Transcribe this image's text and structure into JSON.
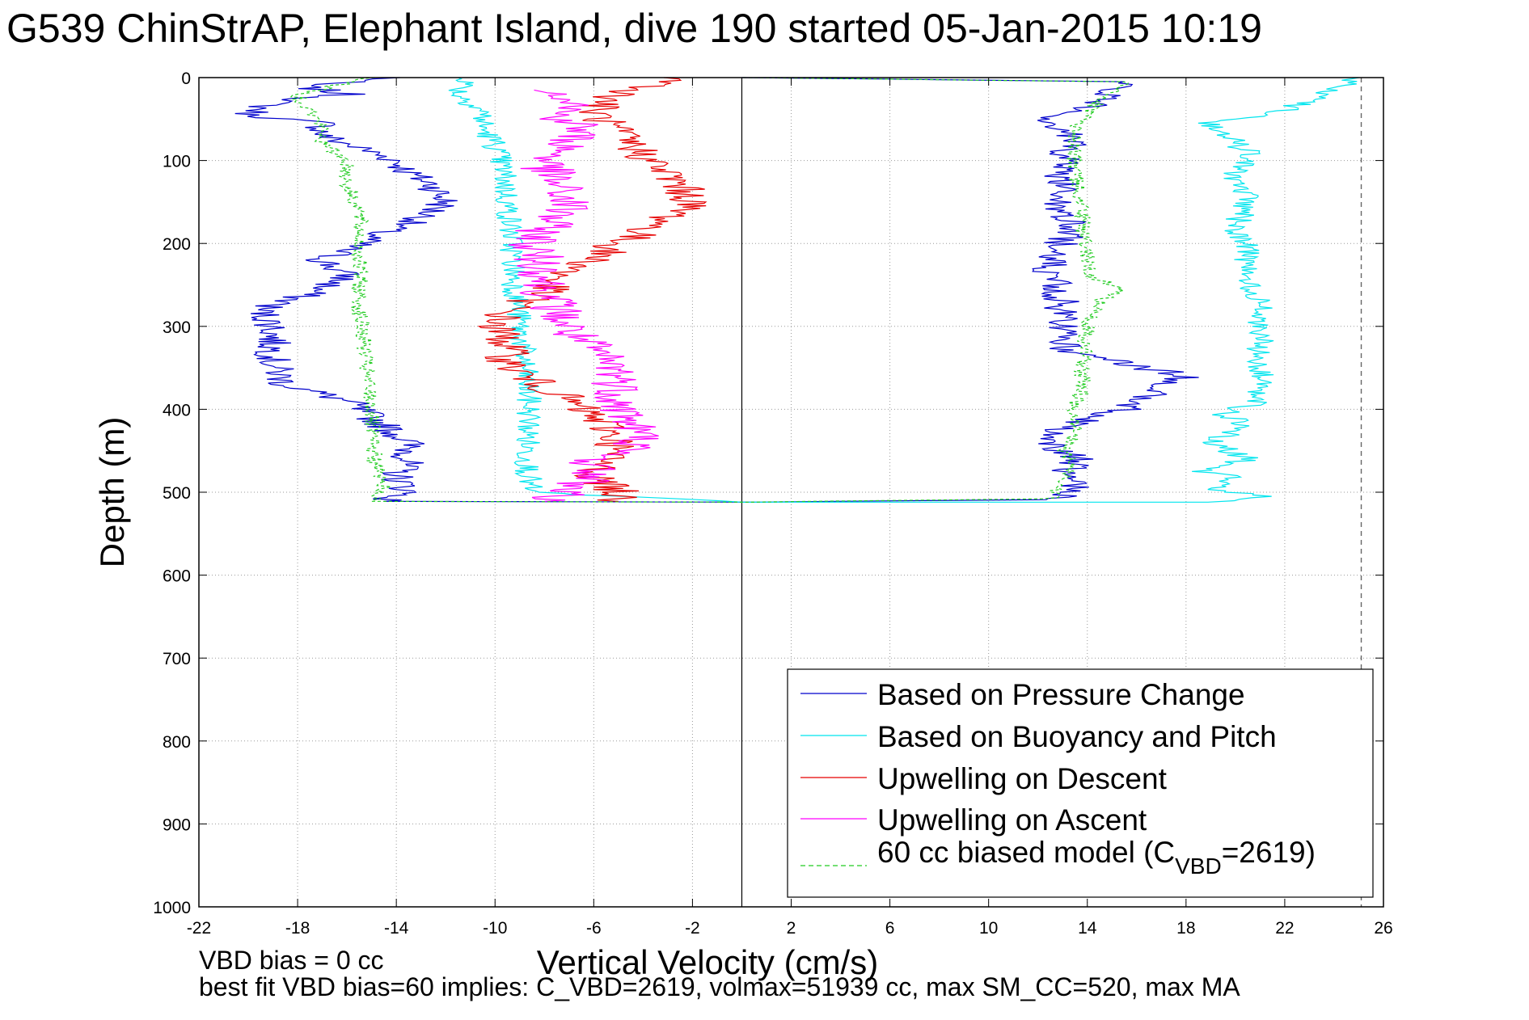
{
  "window": {
    "title": "G539 ChinStrAP, Elephant Island, dive 190 started 05-Jan-2015 10:19"
  },
  "footer": {
    "line1": "VBD bias = 0 cc",
    "line2": "best fit VBD bias=60 implies: C_VBD=2619, volmax=51939 cc, max SM_CC=520, max MA"
  },
  "chart_data": {
    "type": "line",
    "title": "G539 ChinStrAP, Elephant Island, dive 190 started 05-Jan-2015 10:19",
    "xlabel": "Vertical Velocity (cm/s)",
    "ylabel": "Depth (m)",
    "xlim": [
      -22,
      26
    ],
    "ylim": [
      1000,
      0
    ],
    "y_reversed": true,
    "grid": true,
    "legend_position": "bottom-right",
    "x_ticks": [
      "-22",
      "-18",
      "-14",
      "-10",
      "-6",
      "-2",
      "2",
      "6",
      "10",
      "14",
      "18",
      "22",
      "26"
    ],
    "y_ticks": [
      "0",
      "100",
      "200",
      "300",
      "400",
      "500",
      "600",
      "700",
      "800",
      "900",
      "1000"
    ],
    "legend": [
      "Based on Pressure Change",
      "Based on Buoyancy and Pitch",
      "Upwelling on Descent",
      "Upwelling on Ascent"
    ],
    "legend_model": {
      "prefix": "60 cc biased model (C",
      "sub": "VBD",
      "suffix": "=2619)"
    },
    "reference_lines": {
      "zero_x": 0,
      "dashed_x": 25.1
    },
    "series": [
      {
        "name": "Based on Pressure Change",
        "color": "#0000cc",
        "noise": 0.75,
        "points": [
          [
            -14,
            0
          ],
          [
            -18,
            10
          ],
          [
            -16,
            20
          ],
          [
            -19,
            30
          ],
          [
            -20,
            45
          ],
          [
            -17,
            55
          ],
          [
            -17,
            70
          ],
          [
            -15.5,
            85
          ],
          [
            -14,
            100
          ],
          [
            -13.5,
            115
          ],
          [
            -12.5,
            130
          ],
          [
            -12,
            150
          ],
          [
            -13,
            170
          ],
          [
            -14.5,
            185
          ],
          [
            -15.5,
            200
          ],
          [
            -17,
            220
          ],
          [
            -16,
            240
          ],
          [
            -17.5,
            260
          ],
          [
            -19.5,
            280
          ],
          [
            -19,
            300
          ],
          [
            -19,
            320
          ],
          [
            -19,
            345
          ],
          [
            -18.5,
            370
          ],
          [
            -16,
            390
          ],
          [
            -15,
            410
          ],
          [
            -13.5,
            440
          ],
          [
            -13.5,
            460
          ],
          [
            -14,
            480
          ],
          [
            -13.5,
            500
          ],
          [
            -14.5,
            511
          ],
          [
            0,
            512
          ],
          [
            12.5,
            509
          ],
          [
            13.5,
            500
          ],
          [
            13,
            480
          ],
          [
            13.5,
            460
          ],
          [
            12.5,
            440
          ],
          [
            13,
            420
          ],
          [
            15.5,
            400
          ],
          [
            16.5,
            385
          ],
          [
            18,
            360
          ],
          [
            15.5,
            345
          ],
          [
            13,
            330
          ],
          [
            13,
            300
          ],
          [
            13,
            270
          ],
          [
            12.5,
            240
          ],
          [
            12.5,
            210
          ],
          [
            13.5,
            185
          ],
          [
            13,
            160
          ],
          [
            13,
            130
          ],
          [
            13,
            100
          ],
          [
            13.5,
            70
          ],
          [
            12.5,
            50
          ],
          [
            14,
            35
          ],
          [
            15,
            20
          ],
          [
            15.5,
            5
          ],
          [
            0,
            0
          ]
        ]
      },
      {
        "name": "Based on Buoyancy and Pitch",
        "color": "#00e5ee",
        "noise": 0.55,
        "points": [
          [
            -11,
            0
          ],
          [
            -11.5,
            20
          ],
          [
            -10.5,
            40
          ],
          [
            -10.5,
            60
          ],
          [
            -10,
            80
          ],
          [
            -9.8,
            100
          ],
          [
            -9.6,
            120
          ],
          [
            -9.5,
            150
          ],
          [
            -9.3,
            200
          ],
          [
            -9.2,
            250
          ],
          [
            -9,
            300
          ],
          [
            -8.8,
            350
          ],
          [
            -8.6,
            400
          ],
          [
            -8.7,
            450
          ],
          [
            -8.6,
            500
          ],
          [
            0,
            512
          ],
          [
            19,
            512
          ],
          [
            21,
            505
          ],
          [
            19,
            495
          ],
          [
            20,
            480
          ],
          [
            18.5,
            475
          ],
          [
            20.5,
            460
          ],
          [
            19,
            440
          ],
          [
            20.5,
            420
          ],
          [
            19.5,
            405
          ],
          [
            21,
            390
          ],
          [
            21,
            360
          ],
          [
            21,
            330
          ],
          [
            21,
            300
          ],
          [
            21,
            270
          ],
          [
            20.5,
            240
          ],
          [
            20.5,
            210
          ],
          [
            20,
            180
          ],
          [
            20.5,
            150
          ],
          [
            20,
            120
          ],
          [
            20.5,
            90
          ],
          [
            19,
            55
          ],
          [
            22,
            40
          ],
          [
            23.5,
            20
          ],
          [
            25,
            0
          ]
        ]
      },
      {
        "name": "Upwelling on Descent",
        "color": "#e60000",
        "noise": 0.9,
        "points": [
          [
            -2.5,
            0
          ],
          [
            -3.5,
            10
          ],
          [
            -5,
            20
          ],
          [
            -6,
            40
          ],
          [
            -5.5,
            55
          ],
          [
            -4.5,
            80
          ],
          [
            -3.5,
            105
          ],
          [
            -2.5,
            130
          ],
          [
            -2,
            150
          ],
          [
            -3,
            170
          ],
          [
            -4,
            185
          ],
          [
            -5,
            200
          ],
          [
            -6,
            220
          ],
          [
            -7.5,
            240
          ],
          [
            -8,
            260
          ],
          [
            -9.5,
            280
          ],
          [
            -10,
            300
          ],
          [
            -9.5,
            320
          ],
          [
            -9.5,
            345
          ],
          [
            -8.5,
            365
          ],
          [
            -7.5,
            380
          ],
          [
            -6.5,
            400
          ],
          [
            -5.5,
            420
          ],
          [
            -5,
            440
          ],
          [
            -5.5,
            460
          ],
          [
            -6,
            480
          ],
          [
            -5,
            500
          ],
          [
            -5,
            511
          ]
        ]
      },
      {
        "name": "Upwelling on Ascent",
        "color": "#ff00ff",
        "noise": 1.1,
        "points": [
          [
            -7.5,
            15
          ],
          [
            -6.5,
            30
          ],
          [
            -7.5,
            45
          ],
          [
            -6.5,
            60
          ],
          [
            -7,
            80
          ],
          [
            -8,
            105
          ],
          [
            -7.5,
            130
          ],
          [
            -7,
            155
          ],
          [
            -8,
            180
          ],
          [
            -8.5,
            205
          ],
          [
            -8,
            230
          ],
          [
            -8,
            255
          ],
          [
            -7.5,
            280
          ],
          [
            -7,
            305
          ],
          [
            -6,
            330
          ],
          [
            -5,
            355
          ],
          [
            -5,
            375
          ],
          [
            -5,
            395
          ],
          [
            -4.5,
            415
          ],
          [
            -4,
            440
          ],
          [
            -6,
            460
          ],
          [
            -6,
            480
          ],
          [
            -7,
            500
          ],
          [
            -8,
            511
          ]
        ]
      },
      {
        "name": "60 cc biased model",
        "color": "#22cc22",
        "dashed": true,
        "noise": 0.35,
        "points": [
          [
            -15,
            0
          ],
          [
            -18,
            20
          ],
          [
            -17.5,
            40
          ],
          [
            -17,
            60
          ],
          [
            -17,
            80
          ],
          [
            -16,
            100
          ],
          [
            -16,
            130
          ],
          [
            -15.5,
            160
          ],
          [
            -15.5,
            190
          ],
          [
            -15.5,
            220
          ],
          [
            -15.5,
            250
          ],
          [
            -15.5,
            280
          ],
          [
            -15.3,
            320
          ],
          [
            -15.2,
            360
          ],
          [
            -15,
            400
          ],
          [
            -15,
            440
          ],
          [
            -14.8,
            470
          ],
          [
            -14.5,
            495
          ],
          [
            -15,
            511
          ],
          [
            0,
            512
          ],
          [
            12.5,
            508
          ],
          [
            13,
            490
          ],
          [
            13.5,
            470
          ],
          [
            13,
            450
          ],
          [
            13.5,
            430
          ],
          [
            13.5,
            400
          ],
          [
            13.8,
            370
          ],
          [
            13.8,
            340
          ],
          [
            14,
            300
          ],
          [
            14.5,
            270
          ],
          [
            15.5,
            255
          ],
          [
            14,
            240
          ],
          [
            14,
            210
          ],
          [
            13.8,
            180
          ],
          [
            13.8,
            150
          ],
          [
            13.5,
            120
          ],
          [
            13.5,
            90
          ],
          [
            13.5,
            60
          ],
          [
            14,
            40
          ],
          [
            15,
            20
          ],
          [
            15.5,
            5
          ],
          [
            0,
            0
          ]
        ]
      }
    ]
  }
}
